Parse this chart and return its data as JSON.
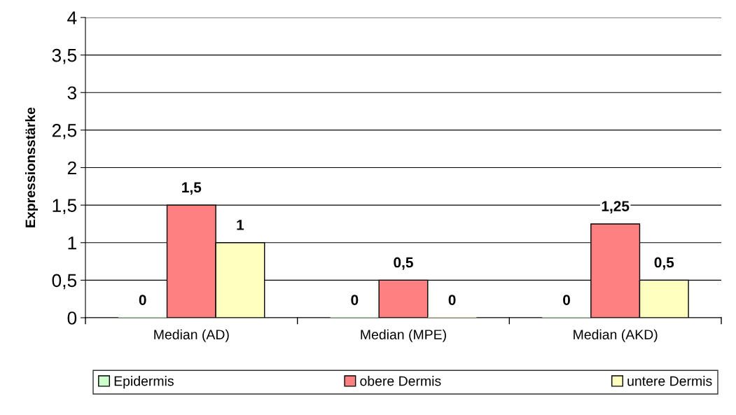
{
  "chart_data": {
    "type": "bar",
    "ylabel": "Expressionsstärke",
    "categories": [
      "Median (AD)",
      "Median (MPE)",
      "Median (AKD)"
    ],
    "series": [
      {
        "name": "Epidermis",
        "color": "#ccffcc",
        "values": [
          0,
          0,
          0
        ],
        "value_labels": [
          "0",
          "0",
          "0"
        ]
      },
      {
        "name": "obere Dermis",
        "color": "#ff8080",
        "values": [
          1.5,
          0.5,
          1.25
        ],
        "value_labels": [
          "1,5",
          "0,5",
          "1,25"
        ]
      },
      {
        "name": "untere Dermis",
        "color": "#ffffc0",
        "values": [
          1,
          0,
          0.5
        ],
        "value_labels": [
          "1",
          "0",
          "0,5"
        ]
      }
    ],
    "ylim": [
      0,
      4
    ],
    "yticks": [
      0,
      {
        "value": 0.5,
        "label": "0,5"
      },
      1,
      {
        "value": 1.5,
        "label": "1,5"
      },
      2,
      {
        "value": 2.5,
        "label": "2,5"
      },
      3,
      {
        "value": 3.5,
        "label": "3,5"
      },
      4
    ],
    "grid": "y",
    "legend": "bottom"
  }
}
